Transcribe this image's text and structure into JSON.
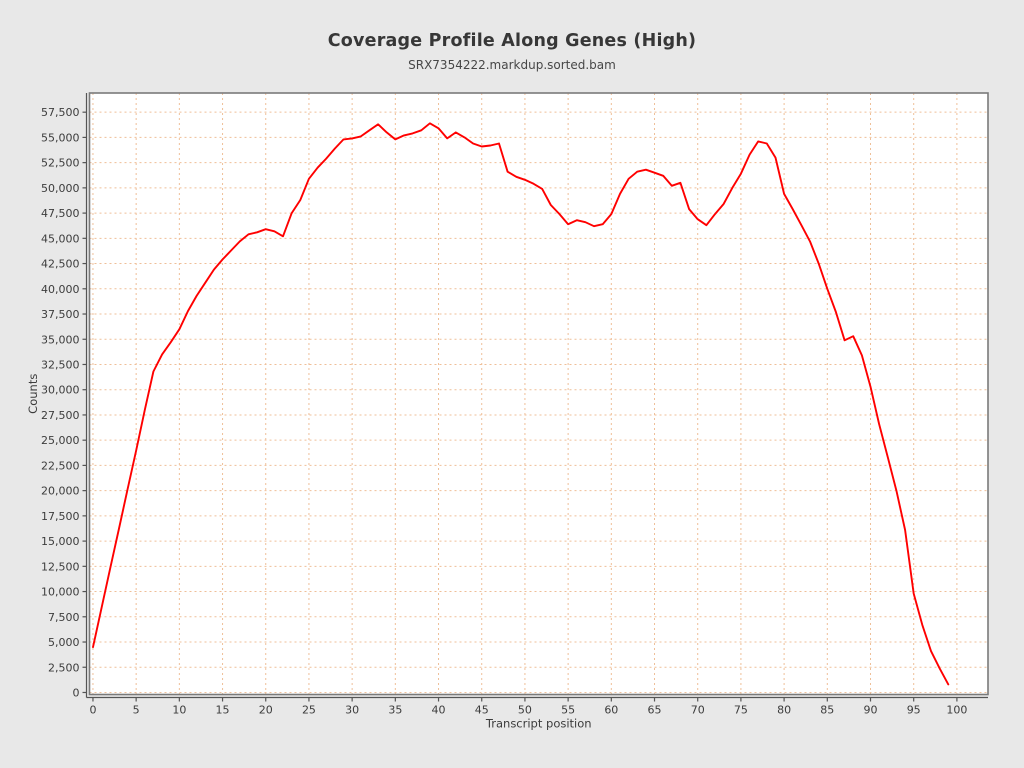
{
  "chart_data": {
    "type": "line",
    "title": "Coverage Profile Along Genes (High)",
    "subtitle": "SRX7354222.markdup.sorted.bam",
    "xlabel": "Transcript position",
    "ylabel": "Counts",
    "grid": true,
    "legend": "none",
    "xlim": [
      -0.4,
      103.6
    ],
    "ylim": [
      -200,
      59400
    ],
    "x_ticks": [
      0,
      5,
      10,
      15,
      20,
      25,
      30,
      35,
      40,
      45,
      50,
      55,
      60,
      65,
      70,
      75,
      80,
      85,
      90,
      95,
      100
    ],
    "y_ticks": [
      0,
      2500,
      5000,
      7500,
      10000,
      12500,
      15000,
      17500,
      20000,
      22500,
      25000,
      27500,
      30000,
      32500,
      35000,
      37500,
      40000,
      42500,
      45000,
      47500,
      50000,
      52500,
      55000,
      57500
    ],
    "series": [
      {
        "name": "coverage",
        "color": "#ff0000",
        "x": [
          0,
          1,
          2,
          3,
          4,
          5,
          6,
          7,
          8,
          9,
          10,
          11,
          12,
          13,
          14,
          15,
          16,
          17,
          18,
          19,
          20,
          21,
          22,
          23,
          24,
          25,
          26,
          27,
          28,
          29,
          30,
          31,
          32,
          33,
          34,
          35,
          36,
          37,
          38,
          39,
          40,
          41,
          42,
          43,
          44,
          45,
          46,
          47,
          48,
          49,
          50,
          51,
          52,
          53,
          54,
          55,
          56,
          57,
          58,
          59,
          60,
          61,
          62,
          63,
          64,
          65,
          66,
          67,
          68,
          69,
          70,
          71,
          72,
          73,
          74,
          75,
          76,
          77,
          78,
          79,
          80,
          81,
          82,
          83,
          84,
          85,
          86,
          87,
          88,
          89,
          90,
          91,
          92,
          93,
          94,
          95,
          96,
          97,
          98,
          99
        ],
        "values": [
          4500,
          8400,
          12300,
          16200,
          20100,
          24000,
          28000,
          31800,
          33500,
          34700,
          36000,
          37800,
          39300,
          40600,
          41900,
          42900,
          43800,
          44700,
          45400,
          45600,
          45900,
          45700,
          45200,
          47500,
          48800,
          50900,
          52000,
          52900,
          53900,
          54800,
          54900,
          55100,
          55700,
          56300,
          55500,
          54800,
          55200,
          55400,
          55700,
          56400,
          55900,
          54900,
          55500,
          55000,
          54400,
          54100,
          54200,
          54400,
          51600,
          51100,
          50800,
          50400,
          49900,
          48300,
          47400,
          46400,
          46800,
          46600,
          46200,
          46400,
          47400,
          49400,
          50900,
          51600,
          51800,
          51500,
          51200,
          50200,
          50500,
          47900,
          46900,
          46300,
          47400,
          48400,
          50000,
          51400,
          53300,
          54600,
          54400,
          53000,
          49400,
          47900,
          46300,
          44700,
          42500,
          40000,
          37700,
          34900,
          35300,
          33400,
          30300,
          26600,
          23300,
          20000,
          16100,
          9800,
          6700,
          4100,
          2400,
          800
        ]
      }
    ],
    "colors": {
      "outer_background": "#e8e8e8",
      "plot_background": "#ffffff",
      "gridline": "#efbf98",
      "plot_border": "#7a7a7a",
      "axis_line": "#555555",
      "series_line": "#ff0000",
      "title_text": "#373737",
      "tick_text": "#3c3c3c"
    }
  }
}
